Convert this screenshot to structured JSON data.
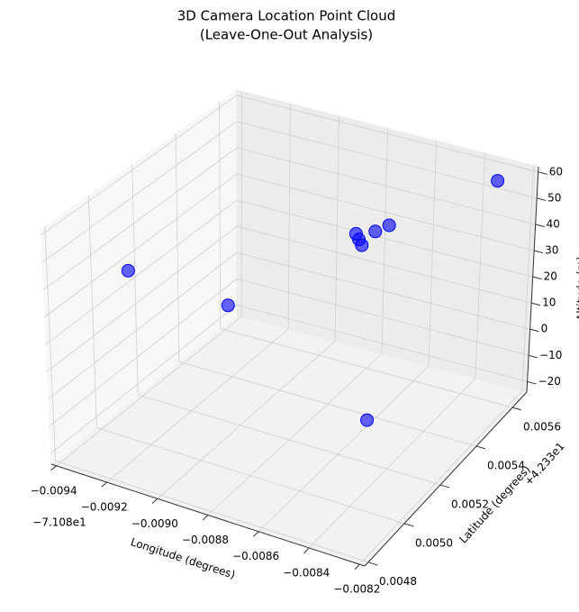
{
  "chart_data": {
    "type": "scatter3d",
    "title": [
      "3D Camera Location Point Cloud",
      "(Leave-One-Out Analysis)"
    ],
    "xlabel": "Longitude (degrees)",
    "ylabel": "Latitude (degrees)",
    "zlabel": "Altitude (m)",
    "x_offset": "−7.108e1",
    "y_offset": "+4.233e1",
    "x": [
      -0.00936,
      -0.00924,
      -0.00842,
      -0.00876,
      -0.00874,
      -0.00872,
      -0.00869,
      -0.00865,
      -0.0083
    ],
    "y": [
      0.0051,
      0.00543,
      0.00511,
      0.00548,
      0.00547,
      0.00546,
      0.00549,
      0.00551,
      0.00562
    ],
    "z": [
      30,
      0,
      0,
      36,
      35,
      34,
      38,
      40,
      58
    ],
    "color": "#0000ff",
    "xlim": [
      -0.00942,
      -0.00818
    ],
    "ylim": [
      0.00478,
      0.00568
    ],
    "zlim": [
      -24,
      62
    ],
    "xticks": [
      {
        "value": -0.0094,
        "label": "−0.0094"
      },
      {
        "value": -0.0092,
        "label": "−0.0092"
      },
      {
        "value": -0.009,
        "label": "−0.0090"
      },
      {
        "value": -0.0088,
        "label": "−0.0088"
      },
      {
        "value": -0.0086,
        "label": "−0.0086"
      },
      {
        "value": -0.0084,
        "label": "−0.0084"
      },
      {
        "value": -0.0082,
        "label": "−0.0082"
      }
    ],
    "yticks": [
      0.0048,
      {
        "value": 0.005,
        "label": "0.0050"
      },
      0.0052,
      0.0054,
      0.0056
    ],
    "zticks": [
      {
        "value": -20,
        "label": "−20"
      },
      {
        "value": -10,
        "label": "−10"
      },
      0,
      10,
      20,
      30,
      40,
      50,
      60
    ],
    "grid": true
  }
}
